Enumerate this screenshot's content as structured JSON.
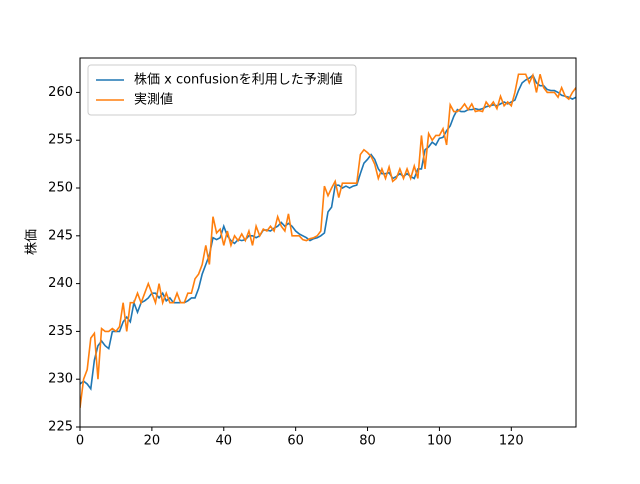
{
  "chart_data": {
    "type": "line",
    "ylabel": "株価",
    "x": [
      0,
      1,
      2,
      3,
      4,
      5,
      6,
      7,
      8,
      9,
      10,
      11,
      12,
      13,
      14,
      15,
      16,
      17,
      18,
      19,
      20,
      21,
      22,
      23,
      24,
      25,
      26,
      27,
      28,
      29,
      30,
      31,
      32,
      33,
      34,
      35,
      36,
      37,
      38,
      39,
      40,
      41,
      42,
      43,
      44,
      45,
      46,
      47,
      48,
      49,
      50,
      51,
      52,
      53,
      54,
      55,
      56,
      57,
      58,
      59,
      60,
      61,
      62,
      63,
      64,
      65,
      66,
      67,
      68,
      69,
      70,
      71,
      72,
      73,
      74,
      75,
      76,
      77,
      78,
      79,
      80,
      81,
      82,
      83,
      84,
      85,
      86,
      87,
      88,
      89,
      90,
      91,
      92,
      93,
      94,
      95,
      96,
      97,
      98,
      99,
      100,
      101,
      102,
      103,
      104,
      105,
      106,
      107,
      108,
      109,
      110,
      111,
      112,
      113,
      114,
      115,
      116,
      117,
      118,
      119,
      120,
      121,
      122,
      123,
      124,
      125,
      126,
      127,
      128,
      129,
      130,
      131,
      132,
      133,
      134,
      135,
      136,
      137,
      138
    ],
    "series": [
      {
        "name": "株価 x confusionを利用した予測値",
        "color": "#1f77b4",
        "values": [
          229.5,
          229.8,
          229.5,
          229,
          232,
          233.5,
          234,
          233.5,
          233.2,
          235,
          235,
          235,
          236,
          236.5,
          236,
          238,
          237,
          238,
          238.2,
          238.5,
          239,
          239,
          238.5,
          239,
          238.2,
          238.5,
          238,
          238,
          238,
          238,
          238.2,
          238.5,
          238.5,
          239.5,
          241,
          242,
          243,
          244.8,
          244.6,
          244.8,
          246,
          245,
          244.5,
          244.2,
          244.6,
          244.5,
          244.6,
          245,
          245,
          244.8,
          245,
          245.6,
          245.6,
          245.5,
          245.8,
          246,
          246.4,
          246,
          246.3,
          246,
          245.5,
          245.2,
          245,
          244.8,
          244.5,
          244.7,
          244.8,
          245,
          245.3,
          247.5,
          248,
          250.3,
          250.3,
          250,
          250.2,
          250,
          250.2,
          250.3,
          251.5,
          252.6,
          253,
          253.5,
          253,
          252,
          251.5,
          251.5,
          251.6,
          251,
          251.2,
          251.5,
          251.2,
          251.5,
          251.2,
          251,
          252,
          252,
          254,
          254.3,
          254.8,
          254.5,
          255.2,
          255.3,
          256,
          256.5,
          257.5,
          258.2,
          258,
          258,
          258.2,
          258.2,
          258.3,
          258.2,
          258.3,
          258.5,
          258.6,
          258.7,
          258.6,
          258.8,
          259,
          258.8,
          259,
          259.2,
          260.2,
          261,
          261.3,
          261.5,
          261.8,
          261,
          260.7,
          260.7,
          260.3,
          260.2,
          260.2,
          260,
          259.7,
          259.6,
          259.5,
          259.3,
          259.5
        ]
      },
      {
        "name": "実測値",
        "color": "#ff7f0e",
        "values": [
          227,
          230,
          231,
          234.3,
          234.8,
          230,
          235.3,
          235,
          235,
          235.3,
          235,
          235.5,
          238,
          235,
          238,
          238,
          239,
          238,
          239,
          240,
          239,
          238,
          240,
          238,
          239,
          238,
          238,
          239,
          238,
          238,
          239,
          239,
          240.5,
          241,
          242,
          244,
          242,
          247,
          245.3,
          245.7,
          244,
          245.5,
          244,
          245,
          244.5,
          245.2,
          244.5,
          245.5,
          244,
          246,
          245,
          245.7,
          245.5,
          246,
          245.5,
          247,
          246,
          245.5,
          247.3,
          245,
          245,
          245,
          244.6,
          244.5,
          244.7,
          244.8,
          245,
          245.5,
          250.2,
          249.2,
          250,
          250.7,
          249,
          250.5,
          250.5,
          250.5,
          250.5,
          250.5,
          253.5,
          254,
          253.7,
          253.3,
          252.5,
          251,
          252,
          251,
          252.2,
          250.7,
          251,
          252,
          251,
          252,
          251,
          252.3,
          251,
          255.5,
          252,
          255.7,
          255,
          255.5,
          255.5,
          256.2,
          254.5,
          258.7,
          258,
          258,
          258.3,
          258.8,
          258.2,
          258.8,
          258,
          258.1,
          258,
          259,
          258.5,
          259,
          258.3,
          259.6,
          258.6,
          259,
          258.6,
          260,
          261.9,
          261.9,
          261.9,
          261,
          261.8,
          260,
          261.9,
          260.5,
          260,
          260,
          260,
          259.5,
          260.5,
          259.6,
          259.3,
          260,
          260.5
        ]
      }
    ],
    "xlim": [
      0,
      138
    ],
    "xticks": [
      0,
      20,
      40,
      60,
      80,
      100,
      120
    ],
    "ylim": [
      225,
      263.6
    ],
    "yticks": [
      225,
      230,
      235,
      240,
      245,
      250,
      255,
      260
    ],
    "legend": "upper left",
    "grid": false
  }
}
